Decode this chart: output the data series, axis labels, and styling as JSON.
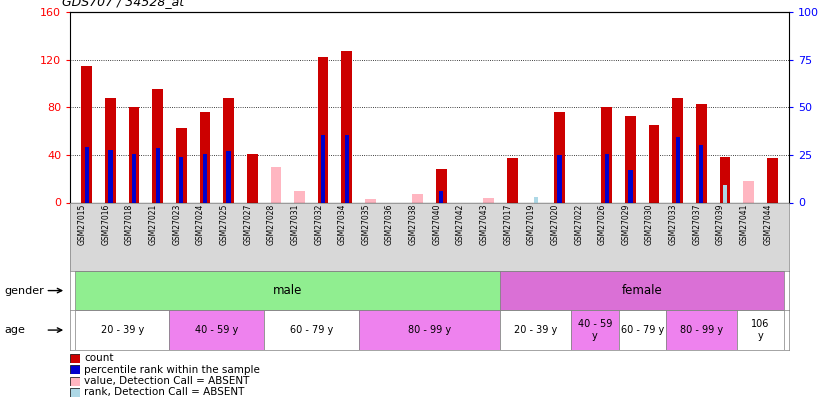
{
  "title": "GDS707 / 34528_at",
  "samples": [
    "GSM27015",
    "GSM27016",
    "GSM27018",
    "GSM27021",
    "GSM27023",
    "GSM27024",
    "GSM27025",
    "GSM27027",
    "GSM27028",
    "GSM27031",
    "GSM27032",
    "GSM27034",
    "GSM27035",
    "GSM27036",
    "GSM27038",
    "GSM27040",
    "GSM27042",
    "GSM27043",
    "GSM27017",
    "GSM27019",
    "GSM27020",
    "GSM27022",
    "GSM27026",
    "GSM27029",
    "GSM27030",
    "GSM27033",
    "GSM27037",
    "GSM27039",
    "GSM27041",
    "GSM27044"
  ],
  "count_values": [
    115,
    88,
    80,
    95,
    63,
    76,
    88,
    41,
    0,
    0,
    122,
    127,
    0,
    0,
    0,
    28,
    0,
    0,
    37,
    0,
    76,
    0,
    80,
    73,
    65,
    88,
    83,
    38,
    0,
    37
  ],
  "rank_values": [
    47,
    44,
    41,
    46,
    38,
    41,
    43,
    0,
    0,
    0,
    57,
    57,
    0,
    0,
    0,
    10,
    0,
    0,
    0,
    0,
    40,
    0,
    41,
    27,
    0,
    55,
    48,
    0,
    0,
    0
  ],
  "absent_count": [
    0,
    0,
    0,
    0,
    0,
    0,
    0,
    0,
    30,
    10,
    0,
    0,
    3,
    0,
    7,
    0,
    0,
    4,
    0,
    0,
    0,
    0,
    0,
    0,
    0,
    0,
    0,
    0,
    18,
    0
  ],
  "absent_rank": [
    0,
    0,
    0,
    0,
    0,
    0,
    0,
    0,
    0,
    0,
    0,
    0,
    0,
    0,
    0,
    0,
    0,
    0,
    0,
    5,
    0,
    0,
    0,
    0,
    0,
    0,
    0,
    15,
    0,
    0
  ],
  "gender_groups": [
    {
      "label": "male",
      "start": 0,
      "end": 17,
      "color": "#90ee90"
    },
    {
      "label": "female",
      "start": 18,
      "end": 29,
      "color": "#da70d6"
    }
  ],
  "age_groups": [
    {
      "label": "20 - 39 y",
      "start": 0,
      "end": 3,
      "color": "#ffffff"
    },
    {
      "label": "40 - 59 y",
      "start": 4,
      "end": 7,
      "color": "#ee82ee"
    },
    {
      "label": "60 - 79 y",
      "start": 8,
      "end": 11,
      "color": "#ffffff"
    },
    {
      "label": "80 - 99 y",
      "start": 12,
      "end": 17,
      "color": "#ee82ee"
    },
    {
      "label": "20 - 39 y",
      "start": 18,
      "end": 20,
      "color": "#ffffff"
    },
    {
      "label": "40 - 59\ny",
      "start": 21,
      "end": 22,
      "color": "#ee82ee"
    },
    {
      "label": "60 - 79 y",
      "start": 23,
      "end": 24,
      "color": "#ffffff"
    },
    {
      "label": "80 - 99 y",
      "start": 25,
      "end": 27,
      "color": "#ee82ee"
    },
    {
      "label": "106\ny",
      "start": 28,
      "end": 29,
      "color": "#ffffff"
    }
  ],
  "ylim_left": [
    0,
    160
  ],
  "ylim_right": [
    0,
    100
  ],
  "yticks_left": [
    0,
    40,
    80,
    120,
    160
  ],
  "yticks_right": [
    0,
    25,
    50,
    75,
    100
  ],
  "color_count": "#cc0000",
  "color_rank": "#0000cc",
  "color_absent_count": "#ffb6c1",
  "color_absent_rank": "#add8e6",
  "bar_width": 0.45,
  "rank_bar_width": 0.18,
  "legend_items": [
    {
      "color": "#cc0000",
      "label": "count"
    },
    {
      "color": "#0000cc",
      "label": "percentile rank within the sample"
    },
    {
      "color": "#ffb6c1",
      "label": "value, Detection Call = ABSENT"
    },
    {
      "color": "#add8e6",
      "label": "rank, Detection Call = ABSENT"
    }
  ]
}
